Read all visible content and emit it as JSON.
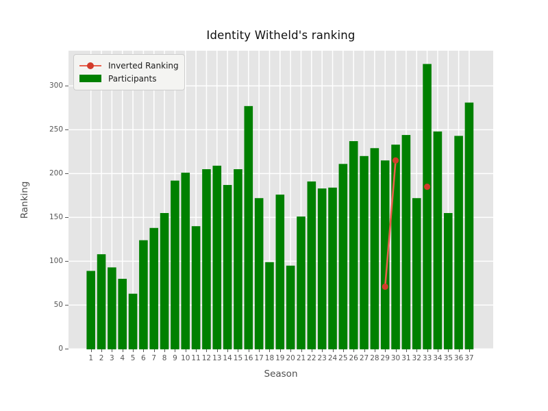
{
  "title": "Identity Witheld's ranking",
  "axes": {
    "xlabel": "Season",
    "ylabel": "Ranking"
  },
  "legend": [
    {
      "label": "Inverted Ranking",
      "type": "line",
      "color": "#e8604c",
      "marker_color": "#d23b2b"
    },
    {
      "label": "Participants",
      "type": "bar",
      "color": "#008000"
    }
  ],
  "colors": {
    "figure_bg": "#ffffff",
    "plot_bg": "#e5e5e5",
    "gridline": "#ffffff",
    "bar_green": "#008000",
    "line_red": "#e8604c",
    "marker_red": "#d23b2b",
    "tick_text": "#555555",
    "axis_label_text": "#4d4d4d",
    "title_text": "#0f0f0f"
  },
  "chart_data": {
    "type": "bar",
    "title": "Identity Witheld's ranking",
    "xlabel": "Season",
    "ylabel": "Ranking",
    "categories": [
      1,
      2,
      3,
      4,
      5,
      6,
      7,
      8,
      9,
      10,
      11,
      12,
      13,
      14,
      15,
      16,
      17,
      18,
      19,
      20,
      21,
      22,
      23,
      24,
      25,
      26,
      27,
      28,
      29,
      30,
      31,
      32,
      33,
      34,
      35,
      36,
      37
    ],
    "series": [
      {
        "name": "Participants",
        "type": "bar",
        "color": "#008000",
        "values": [
          89,
          108,
          93,
          80,
          63,
          124,
          138,
          155,
          192,
          201,
          140,
          205,
          209,
          187,
          205,
          277,
          172,
          99,
          176,
          95,
          151,
          191,
          183,
          184,
          211,
          237,
          220,
          229,
          215,
          233,
          244,
          172,
          325,
          248,
          155,
          243,
          281
        ]
      },
      {
        "name": "Inverted Ranking",
        "type": "line",
        "color": "#e8604c",
        "marker_color": "#d23b2b",
        "points": [
          {
            "season": 29,
            "value": 71
          },
          {
            "season": 30,
            "value": 215
          },
          {
            "season": 33,
            "value": 185
          }
        ]
      }
    ],
    "ylim": [
      0,
      340
    ],
    "yticks": [
      0,
      50,
      100,
      150,
      200,
      250,
      300
    ],
    "grid": true,
    "legend_position": "upper left",
    "plot_bg": "#e5e5e5"
  }
}
